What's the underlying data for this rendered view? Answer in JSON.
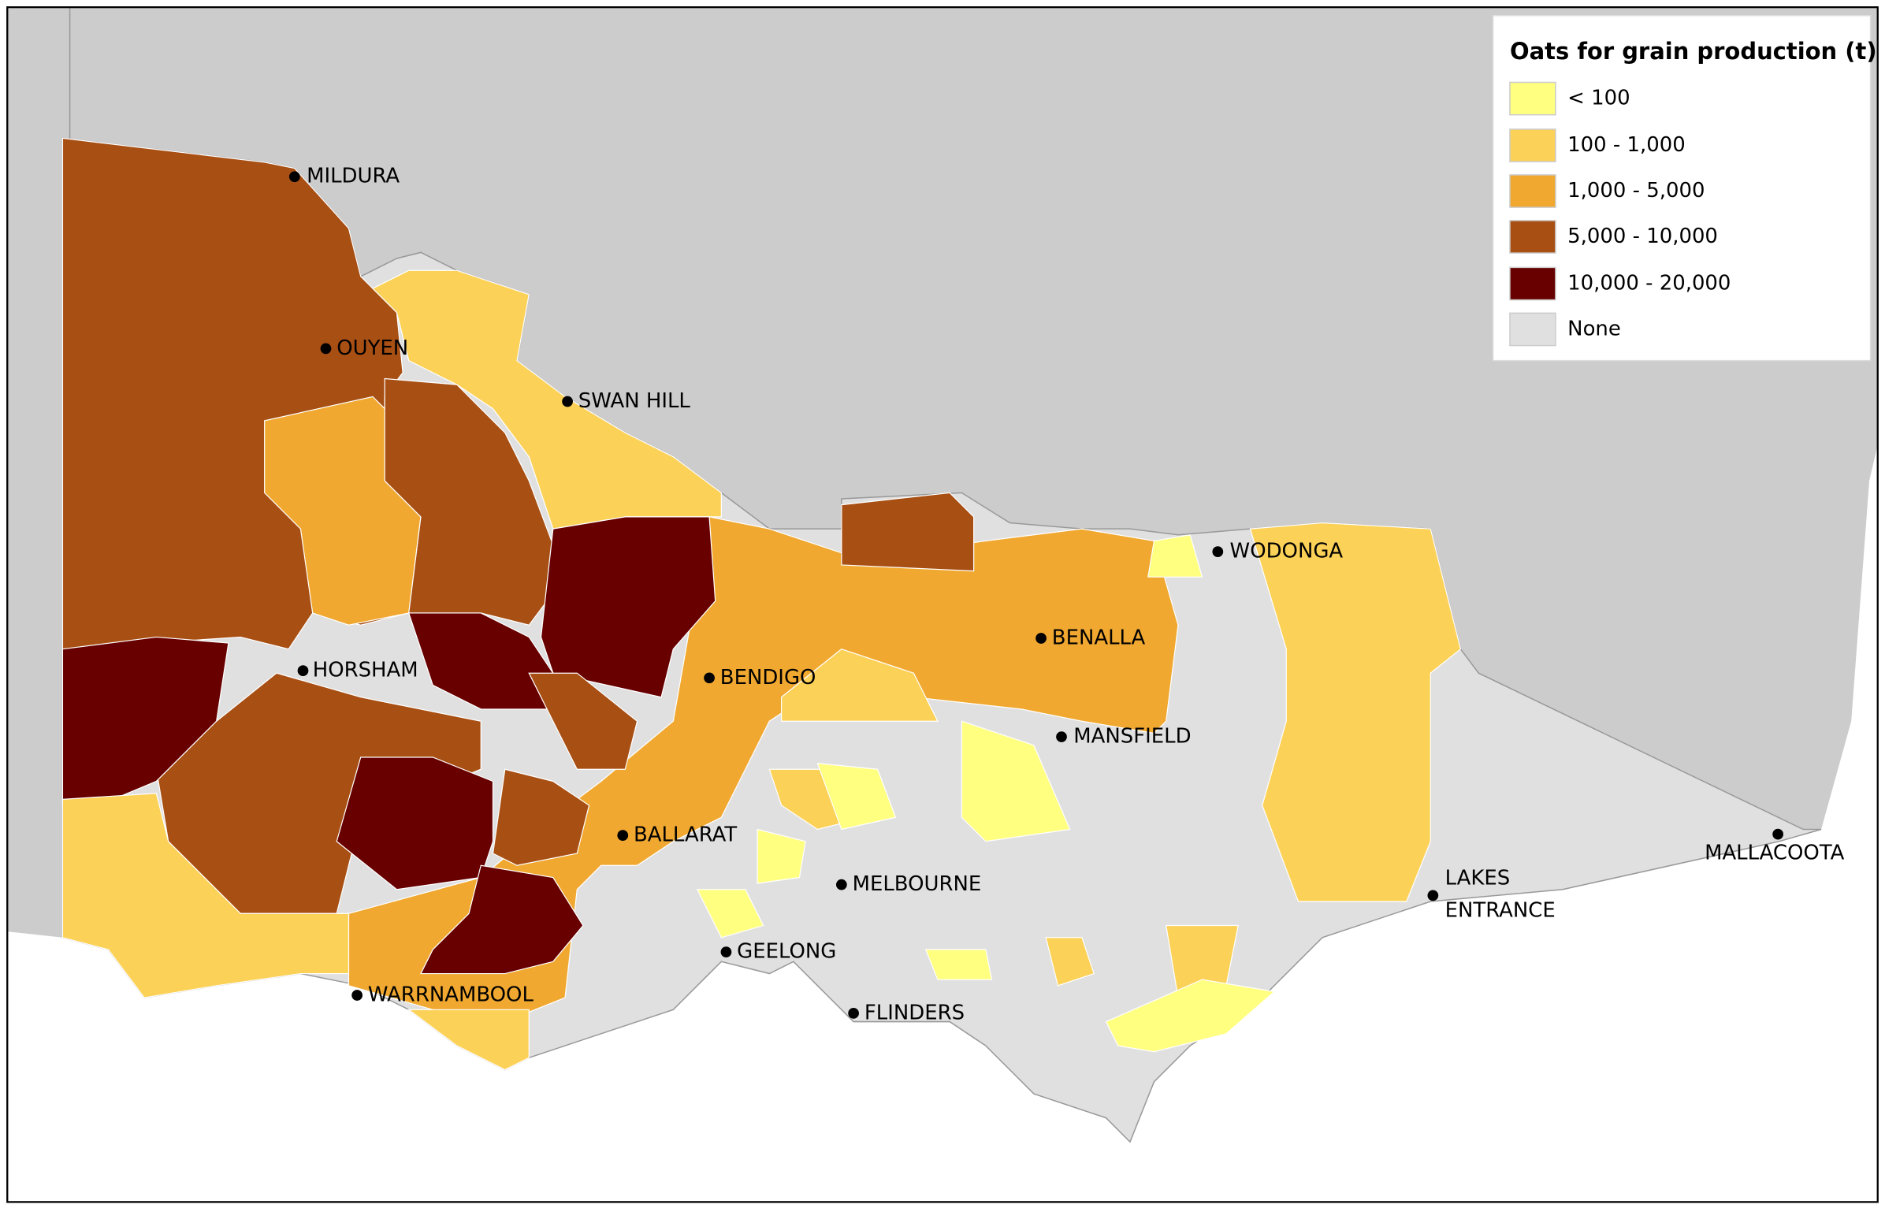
{
  "legend": {
    "title": "Oats for grain production (t)",
    "items": [
      {
        "label": "< 100",
        "color": "#ffff80"
      },
      {
        "label": "100 - 1,000",
        "color": "#fcd157"
      },
      {
        "label": "1,000 - 5,000",
        "color": "#f0a830"
      },
      {
        "label": "5,000 - 10,000",
        "color": "#a84f14"
      },
      {
        "label": "10,000 - 20,000",
        "color": "#680000"
      },
      {
        "label": "None",
        "color": "#e0e0e0"
      }
    ]
  },
  "cities": [
    {
      "lines": [
        "MILDURA"
      ]
    },
    {
      "lines": [
        "OUYEN"
      ]
    },
    {
      "lines": [
        "SWAN HILL"
      ]
    },
    {
      "lines": [
        "HORSHAM"
      ]
    },
    {
      "lines": [
        "BENDIGO"
      ]
    },
    {
      "lines": [
        "BENALLA"
      ]
    },
    {
      "lines": [
        "MANSFIELD"
      ]
    },
    {
      "lines": [
        "WODONGA"
      ]
    },
    {
      "lines": [
        "BALLARAT"
      ]
    },
    {
      "lines": [
        "MELBOURNE"
      ]
    },
    {
      "lines": [
        "GEELONG"
      ]
    },
    {
      "lines": [
        "FLINDERS"
      ]
    },
    {
      "lines": [
        "WARRNAMBOOL"
      ]
    },
    {
      "lines": [
        "LAKES",
        "ENTRANCE"
      ]
    },
    {
      "lines": [
        "MALLACOOTA"
      ]
    }
  ]
}
